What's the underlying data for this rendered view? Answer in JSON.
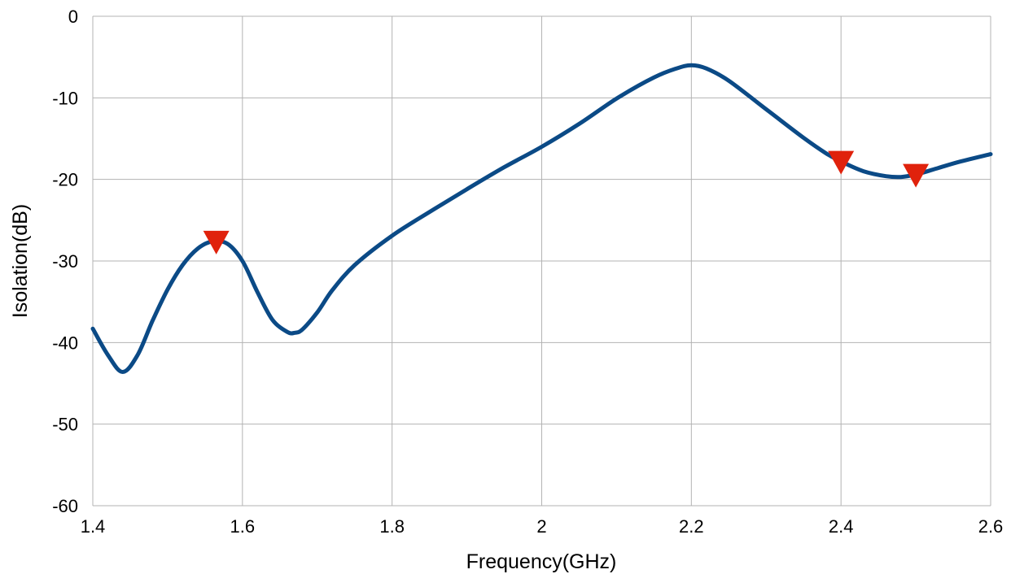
{
  "chart_data": {
    "type": "line",
    "title": "",
    "xlabel": "Frequency(GHz)",
    "ylabel": "Isolation(dB)",
    "xlim": [
      1.4,
      2.6
    ],
    "ylim": [
      -60,
      0
    ],
    "x_ticks": [
      "1.4",
      "1.6",
      "1.8",
      "2",
      "2.2",
      "2.4",
      "2.6"
    ],
    "y_ticks": [
      "0",
      "-10",
      "-20",
      "-30",
      "-40",
      "-50",
      "-60"
    ],
    "grid": true,
    "legend": "none",
    "series": [
      {
        "color": "#0b4a86",
        "x": [
          1.4,
          1.42,
          1.44,
          1.46,
          1.48,
          1.5,
          1.52,
          1.54,
          1.56,
          1.58,
          1.6,
          1.62,
          1.64,
          1.66,
          1.67,
          1.68,
          1.7,
          1.72,
          1.75,
          1.8,
          1.85,
          1.9,
          1.95,
          2.0,
          2.05,
          2.1,
          2.15,
          2.18,
          2.2,
          2.22,
          2.25,
          2.3,
          2.35,
          2.38,
          2.4,
          2.43,
          2.46,
          2.48,
          2.5,
          2.53,
          2.56,
          2.6
        ],
        "y": [
          -38.3,
          -41.5,
          -43.6,
          -41.5,
          -37.3,
          -33.5,
          -30.5,
          -28.5,
          -27.6,
          -27.9,
          -30.0,
          -33.8,
          -37.2,
          -38.7,
          -38.8,
          -38.4,
          -36.3,
          -33.6,
          -30.5,
          -26.9,
          -24.0,
          -21.2,
          -18.5,
          -16.0,
          -13.2,
          -10.1,
          -7.5,
          -6.4,
          -6.0,
          -6.4,
          -7.9,
          -11.4,
          -14.9,
          -16.8,
          -17.8,
          -19.0,
          -19.6,
          -19.7,
          -19.4,
          -18.6,
          -17.8,
          -16.9
        ]
      }
    ],
    "markers": {
      "shape": "triangle-down",
      "color": "#e0220c",
      "points": [
        {
          "x": 1.565,
          "y": -27.6
        },
        {
          "x": 2.4,
          "y": -17.8
        },
        {
          "x": 2.5,
          "y": -19.4
        }
      ]
    }
  }
}
